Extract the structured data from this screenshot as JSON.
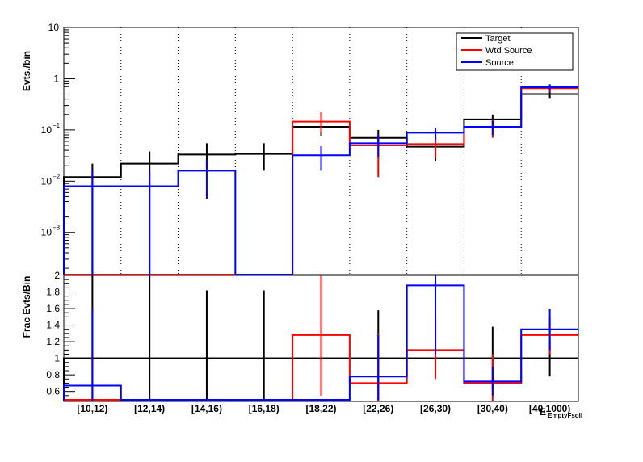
{
  "chart_data": [
    {
      "type": "line",
      "panel": "top",
      "yscale": "log",
      "ylabel": "Evts./bin",
      "ylim": [
        0.00015,
        10
      ],
      "yticks": [
        {
          "value": 10,
          "label": "10"
        },
        {
          "value": 1,
          "label": "1"
        },
        {
          "value": 0.1,
          "label": "10",
          "exp": "−1"
        },
        {
          "value": 0.01,
          "label": "10",
          "exp": "−2"
        },
        {
          "value": 0.001,
          "label": "10",
          "exp": "−3"
        }
      ],
      "categories": [
        "[10,12)",
        "[12,14)",
        "[14,16)",
        "[16,18)",
        "[18,22)",
        "[22,26)",
        "[26,30)",
        "[30,40)",
        "[40,1000)"
      ],
      "grid": "vertical-dotted",
      "legend_position": "top-right",
      "series": [
        {
          "name": "Target",
          "color": "#000000",
          "values": [
            0.012,
            0.022,
            0.033,
            0.034,
            0.115,
            0.07,
            0.047,
            0.16,
            0.5
          ],
          "err_low": [
            0.0001,
            0.0001,
            0.018,
            0.016,
            0.075,
            0.045,
            0.025,
            0.11,
            0.42
          ],
          "err_high": [
            0.022,
            0.038,
            0.055,
            0.055,
            0.17,
            0.1,
            0.075,
            0.2,
            0.62
          ]
        },
        {
          "name": "Wtd Source",
          "color": "#ff0000",
          "values": [
            null,
            null,
            null,
            null,
            0.145,
            0.05,
            0.053,
            0.115,
            0.65
          ],
          "err_low": [
            null,
            null,
            null,
            null,
            0.09,
            0.012,
            0.028,
            0.07,
            0.55
          ],
          "err_high": [
            null,
            null,
            null,
            null,
            0.22,
            0.075,
            0.08,
            0.16,
            0.75
          ]
        },
        {
          "name": "Source",
          "color": "#0000ff",
          "values": [
            0.008,
            0.008,
            0.016,
            null,
            0.032,
            0.055,
            0.088,
            0.115,
            0.68
          ],
          "err_low": [
            0.0001,
            0.0001,
            0.0045,
            null,
            0.016,
            0.03,
            0.065,
            0.08,
            0.58
          ],
          "err_high": [
            0.016,
            0.016,
            0.026,
            null,
            0.048,
            0.08,
            0.11,
            0.15,
            0.78
          ]
        }
      ]
    },
    {
      "type": "line",
      "panel": "bottom",
      "ylabel": "Frac Evts/Bin",
      "xlabel": "E",
      "xlabel_sub": "EmptyFsoll",
      "ylim": [
        0.48,
        2.0
      ],
      "yticks": [
        {
          "value": 0.6,
          "label": "0.6"
        },
        {
          "value": 0.8,
          "label": "0.8"
        },
        {
          "value": 1.0,
          "label": "1"
        },
        {
          "value": 1.2,
          "label": "1.2"
        },
        {
          "value": 1.4,
          "label": "1.4"
        },
        {
          "value": 1.6,
          "label": "1.6"
        },
        {
          "value": 1.8,
          "label": "1.8"
        },
        {
          "value": 2.0,
          "label": "2"
        }
      ],
      "categories": [
        "[10,12)",
        "[12,14)",
        "[14,16)",
        "[16,18)",
        "[18,22)",
        "[22,26)",
        "[26,30)",
        "[30,40)",
        "[40,1000)"
      ],
      "grid": "none",
      "series": [
        {
          "name": "Target",
          "color": "#000000",
          "values": [
            1,
            1,
            1,
            1,
            1,
            1,
            1,
            1,
            1
          ],
          "err_low": [
            0.0,
            0.0,
            0.18,
            0.18,
            null,
            0.4,
            null,
            0.62,
            0.78
          ],
          "err_high": [
            2.0,
            2.0,
            1.82,
            1.82,
            null,
            1.58,
            null,
            1.38,
            1.22
          ]
        },
        {
          "name": "Wtd Source",
          "color": "#ff0000",
          "values": [
            0.5,
            0.5,
            0.5,
            0.5,
            1.28,
            0.7,
            1.1,
            0.7,
            1.28
          ],
          "err_low": [
            null,
            null,
            null,
            null,
            0.55,
            0.4,
            0.75,
            0.4,
            1.05
          ],
          "err_high": [
            null,
            null,
            null,
            null,
            2.0,
            1.3,
            1.5,
            1.05,
            1.5
          ]
        },
        {
          "name": "Source",
          "color": "#0000ff",
          "values": [
            0.67,
            0.5,
            0.5,
            0.5,
            0.5,
            0.78,
            1.88,
            0.72,
            1.35
          ],
          "err_low": [
            0.0,
            null,
            null,
            null,
            null,
            0.5,
            1.05,
            0.55,
            1.1
          ],
          "err_high": [
            1.6,
            null,
            null,
            null,
            null,
            1.28,
            2.0,
            0.9,
            1.6
          ]
        }
      ]
    }
  ]
}
